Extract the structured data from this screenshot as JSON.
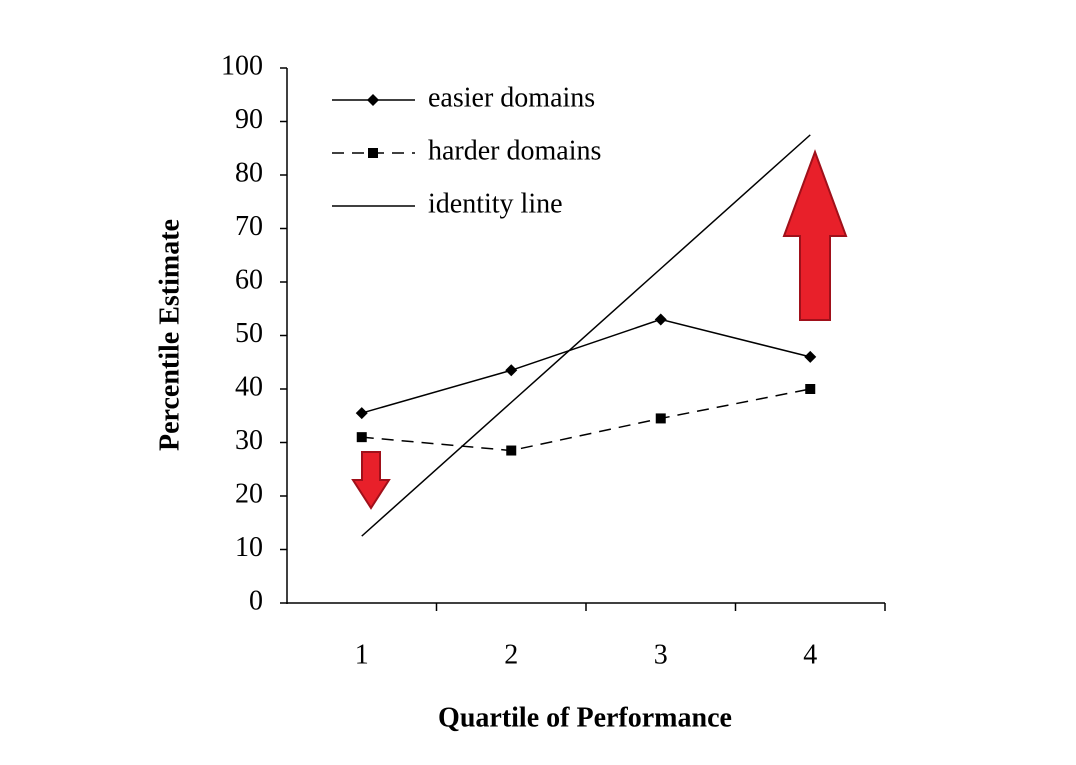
{
  "chart_data": {
    "type": "line",
    "x_label": "Quartile of Performance",
    "y_label": "Percentile Estimate",
    "categories": [
      "1",
      "2",
      "3",
      "4"
    ],
    "ylim": [
      0,
      100
    ],
    "yticks": [
      0,
      10,
      20,
      30,
      40,
      50,
      60,
      70,
      80,
      90,
      100
    ],
    "legend": "top-left",
    "series": [
      {
        "name": "easier domains",
        "color": "#000000",
        "marker": "diamond",
        "dash": false,
        "values": [
          35.5,
          43.5,
          53,
          46
        ]
      },
      {
        "name": "harder domains",
        "color": "#000000",
        "marker": "square",
        "dash": true,
        "values": [
          31,
          28.5,
          34.5,
          40
        ]
      },
      {
        "name": "identity line",
        "color": "#000000",
        "marker": null,
        "dash": false,
        "values": [
          12.5,
          37.5,
          62.5,
          87.5
        ]
      }
    ]
  }
}
